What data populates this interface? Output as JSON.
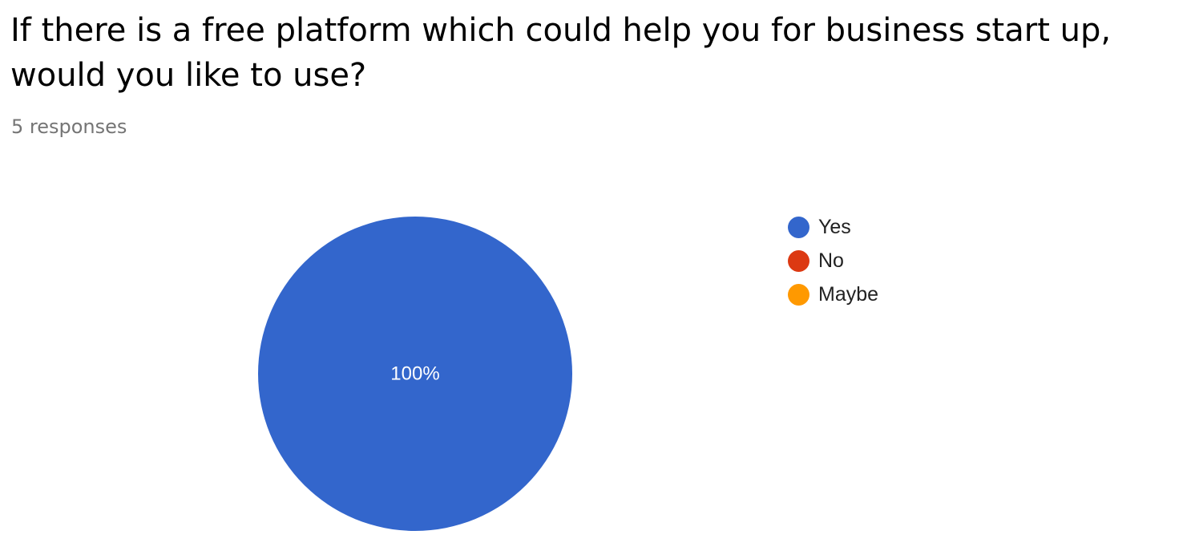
{
  "question": {
    "title": "If there is a free platform which could help you for business start up, would you like to use?",
    "responses_text": "5 responses"
  },
  "chart_data": {
    "type": "pie",
    "categories": [
      "Yes",
      "No",
      "Maybe"
    ],
    "values": [
      100,
      0,
      0
    ],
    "colors": [
      "#3366cc",
      "#dc3912",
      "#ff9900"
    ],
    "slice_labels": [
      "100%",
      "",
      ""
    ],
    "legend_position": "right"
  }
}
